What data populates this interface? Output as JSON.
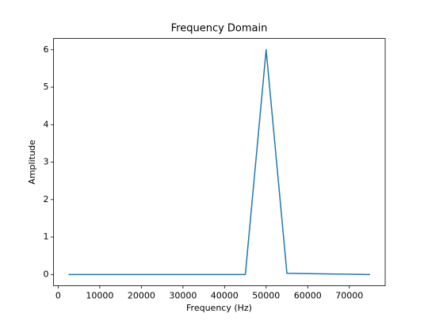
{
  "chart_data": {
    "type": "line",
    "title": "Frequency Domain",
    "x_label": "Frequency (Hz)",
    "y_label": "Amplitude",
    "x": [
      2500,
      45000,
      50000,
      55000,
      75000
    ],
    "series": [
      {
        "name": "Amplitude",
        "color": "#1f77b4",
        "values": [
          0,
          0,
          6,
          0.03,
          0
        ]
      }
    ],
    "xlim": [
      -1125,
      78625
    ],
    "xticks": [
      0,
      10000,
      20000,
      30000,
      40000,
      50000,
      60000,
      70000
    ],
    "ylim": [
      -0.3,
      6.3
    ],
    "yticks": [
      0,
      1,
      2,
      3,
      4,
      5,
      6
    ],
    "grid": false
  }
}
